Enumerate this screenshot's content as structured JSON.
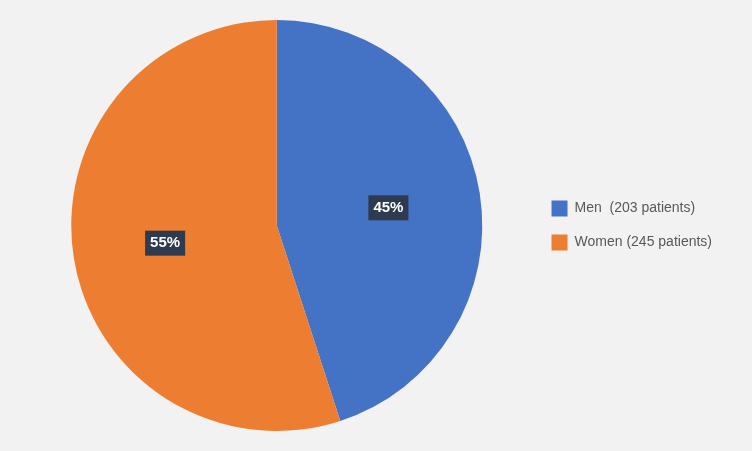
{
  "chart_data": {
    "type": "pie",
    "categories": [
      "Men  (203 patients)",
      "Women (245 patients)"
    ],
    "values": [
      45,
      55
    ],
    "value_labels": [
      "45%",
      "55%"
    ],
    "colors": [
      "#4472C4",
      "#ED7D31"
    ],
    "data_labels": true,
    "legend": "right"
  }
}
